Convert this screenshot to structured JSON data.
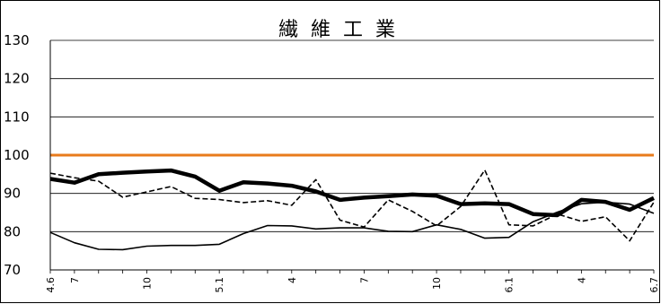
{
  "chart_data": {
    "type": "line",
    "title": "繊維工業",
    "xlabel": "",
    "ylabel": "",
    "ylim": [
      70,
      130
    ],
    "yticks": [
      70,
      80,
      90,
      100,
      110,
      120,
      130
    ],
    "grid": true,
    "x_tick_labels": [
      "4.6",
      "7",
      "10",
      "5.1",
      "4",
      "7",
      "10",
      "6.1",
      "4",
      "6.7"
    ],
    "x_tick_indices": [
      0,
      1,
      4,
      7,
      10,
      13,
      16,
      19,
      22,
      25
    ],
    "reference_line": {
      "value": 100,
      "color": "#e87b1c"
    },
    "series": [
      {
        "style": "thick-solid",
        "color": "#000000",
        "values": [
          93.8,
          92.8,
          95.0,
          95.4,
          95.7,
          96.0,
          94.4,
          90.7,
          92.9,
          92.6,
          92.0,
          90.5,
          88.3,
          88.9,
          89.3,
          89.7,
          89.4,
          87.2,
          87.4,
          87.2,
          84.6,
          84.3,
          88.3,
          87.8,
          85.7,
          88.8
        ]
      },
      {
        "style": "dashed",
        "color": "#000000",
        "values": [
          95.3,
          94.1,
          93.2,
          89.0,
          90.4,
          91.8,
          88.7,
          88.4,
          87.6,
          88.1,
          86.9,
          93.6,
          83.0,
          81.2,
          88.3,
          85.3,
          81.5,
          86.6,
          96.1,
          81.8,
          81.5,
          84.6,
          82.7,
          83.9,
          77.6,
          87.7
        ]
      },
      {
        "style": "thin-solid",
        "color": "#000000",
        "values": [
          79.8,
          77.1,
          75.4,
          75.3,
          76.2,
          76.4,
          76.4,
          76.7,
          79.5,
          81.6,
          81.5,
          80.7,
          81.0,
          81.0,
          80.1,
          80.0,
          81.8,
          80.6,
          78.3,
          78.5,
          82.6,
          85.1,
          87.3,
          87.7,
          87.2,
          84.8
        ]
      }
    ]
  }
}
